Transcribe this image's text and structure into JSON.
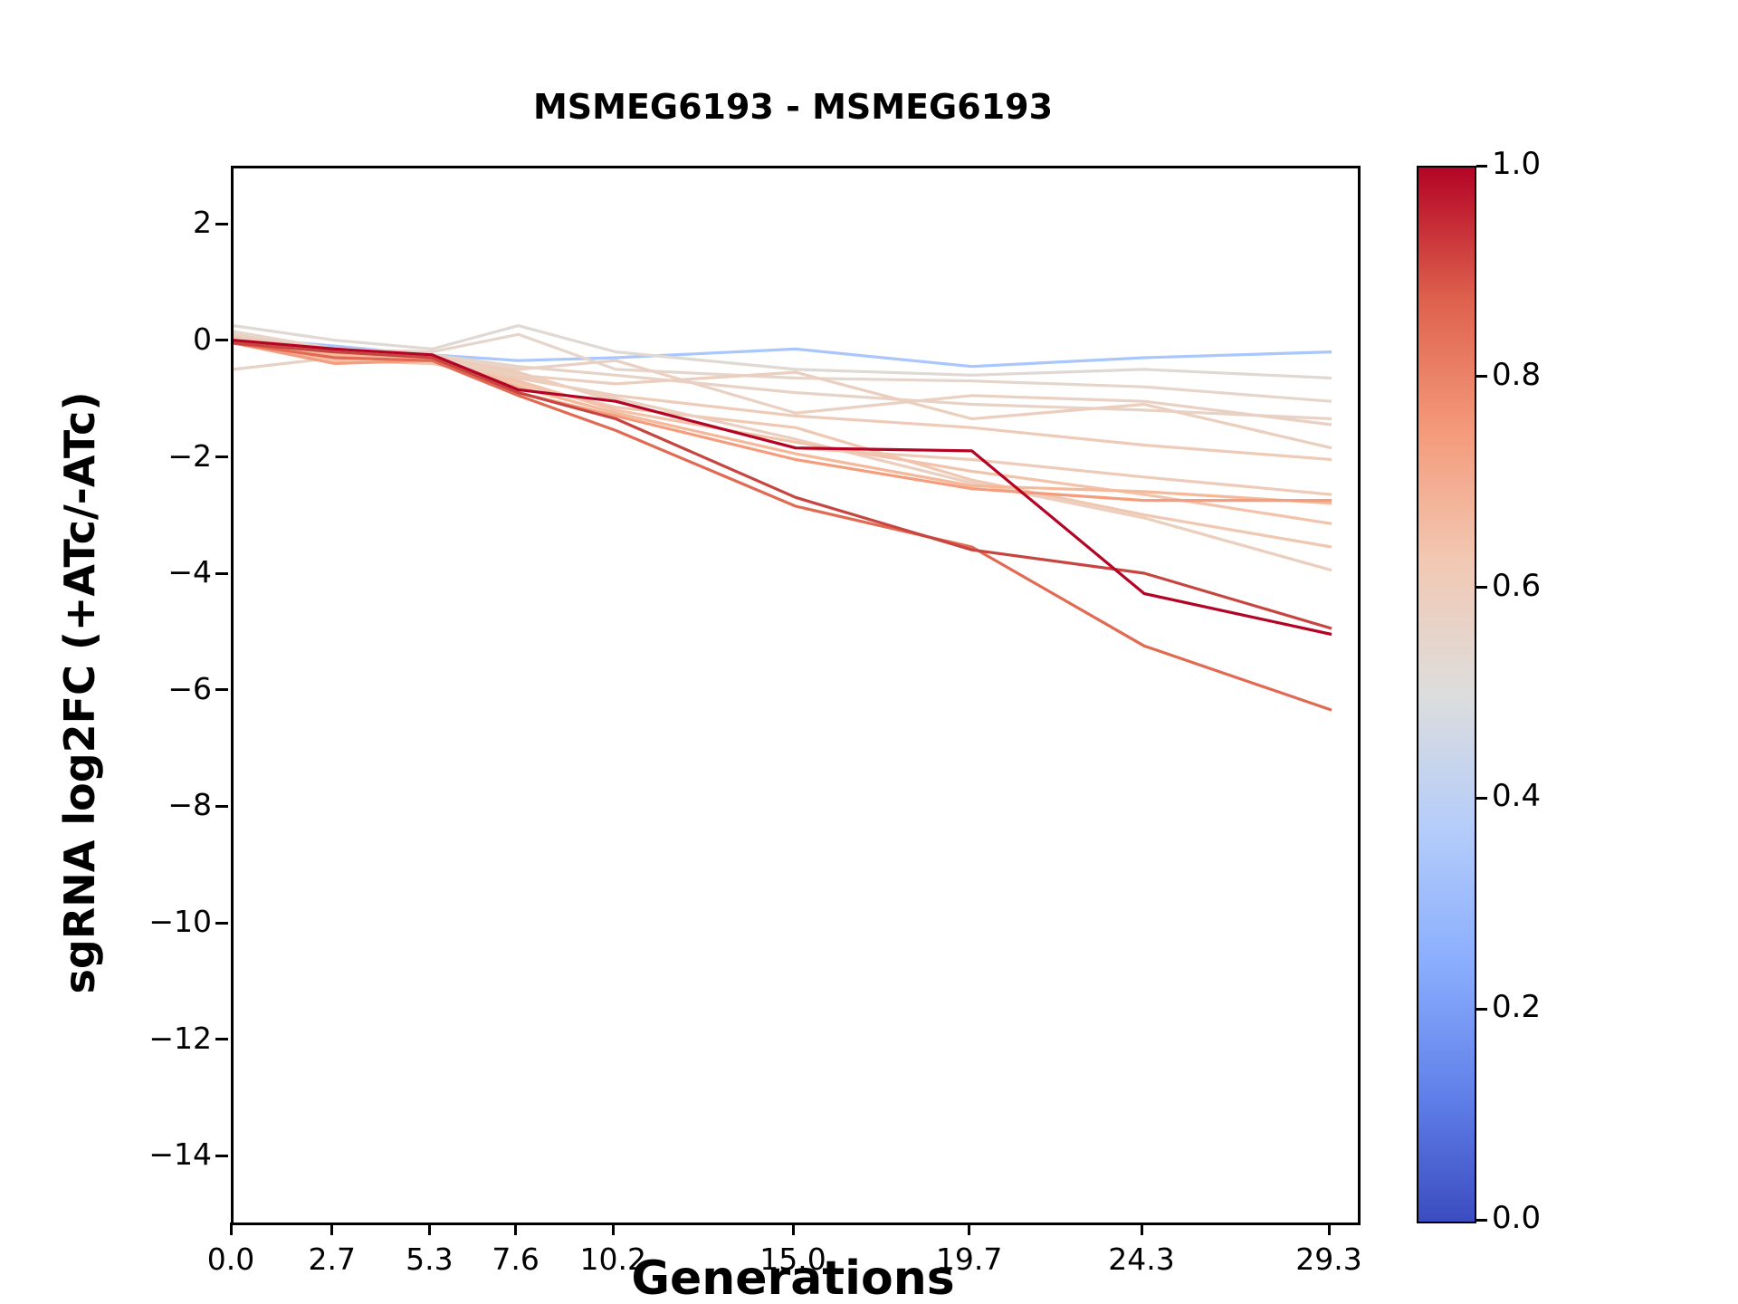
{
  "chart_data": {
    "type": "line",
    "title": "MSMEG6193 - MSMEG6193",
    "xlabel": "Generations",
    "ylabel": "sgRNA log2FC (+ATc/-ATc)",
    "x": [
      0.0,
      2.7,
      5.3,
      7.6,
      10.2,
      15.0,
      19.7,
      24.3,
      29.3
    ],
    "xtick_labels": [
      "0.0",
      "2.7",
      "5.3",
      "7.6",
      "10.2",
      "15.0",
      "19.7",
      "24.3",
      "29.3"
    ],
    "yticks": [
      2,
      0,
      -2,
      -4,
      -6,
      -8,
      -10,
      -12,
      -14
    ],
    "ytick_labels": [
      "2",
      "0",
      "−2",
      "−4",
      "−6",
      "−8",
      "−10",
      "−12",
      "−14"
    ],
    "xlim": [
      0,
      30
    ],
    "ylim": [
      -15.1,
      3.0
    ],
    "grid": false,
    "legend": false,
    "series": [
      {
        "c": 0.4,
        "color": "#A9C6FD",
        "values": [
          0.1,
          -0.05,
          -0.2,
          -0.3,
          -0.25,
          -0.1,
          -0.4,
          -0.25,
          -0.15
        ]
      },
      {
        "c": 0.53,
        "color": "#E0D8D2",
        "values": [
          0.3,
          0.05,
          -0.1,
          0.3,
          -0.15,
          -0.45,
          -0.55,
          -0.45,
          -0.6
        ]
      },
      {
        "c": 0.55,
        "color": "#E5D5CB",
        "values": [
          0.2,
          -0.1,
          -0.15,
          0.15,
          -0.45,
          -0.6,
          -0.65,
          -0.75,
          -1.0
        ]
      },
      {
        "c": 0.56,
        "color": "#E7D2C6",
        "values": [
          -0.45,
          -0.25,
          -0.2,
          -0.4,
          -0.55,
          -0.85,
          -1.05,
          -1.15,
          -1.3
        ]
      },
      {
        "c": 0.57,
        "color": "#E9D0C2",
        "values": [
          0.15,
          -0.15,
          -0.25,
          -0.45,
          -0.3,
          -1.2,
          -0.9,
          -1.0,
          -1.4
        ]
      },
      {
        "c": 0.58,
        "color": "#EBCEBE",
        "values": [
          0.05,
          -0.3,
          -0.2,
          -0.55,
          -0.7,
          -0.5,
          -1.3,
          -1.05,
          -1.8
        ]
      },
      {
        "c": 0.6,
        "color": "#EECBB8",
        "values": [
          0.0,
          -0.2,
          -0.3,
          -0.6,
          -0.9,
          -1.25,
          -1.45,
          -1.75,
          -2.0
        ]
      },
      {
        "c": 0.6,
        "color": "#EECBB8",
        "values": [
          0.1,
          -0.1,
          -0.25,
          -0.5,
          -1.0,
          -1.8,
          -2.0,
          -2.3,
          -2.6
        ]
      },
      {
        "c": 0.62,
        "color": "#F0C7B0",
        "values": [
          0.05,
          -0.25,
          -0.3,
          -0.7,
          -1.1,
          -1.45,
          -2.35,
          -2.95,
          -3.5
        ]
      },
      {
        "c": 0.58,
        "color": "#EBCEBE",
        "values": [
          0.0,
          -0.2,
          -0.25,
          -0.55,
          -0.95,
          -1.65,
          -2.4,
          -3.0,
          -3.9
        ]
      },
      {
        "c": 0.64,
        "color": "#F2C3AA",
        "values": [
          0.0,
          -0.3,
          -0.35,
          -0.65,
          -1.15,
          -1.7,
          -2.2,
          -2.6,
          -3.1
        ]
      },
      {
        "c": 0.68,
        "color": "#F5B99A",
        "values": [
          0.05,
          -0.2,
          -0.3,
          -0.75,
          -1.2,
          -1.9,
          -2.45,
          -2.55,
          -2.75
        ]
      },
      {
        "c": 0.75,
        "color": "#F59C7D",
        "values": [
          0.0,
          -0.35,
          -0.3,
          -0.85,
          -1.25,
          -2.0,
          -2.5,
          -2.7,
          -2.7
        ]
      },
      {
        "c": 0.85,
        "color": "#E16A52",
        "values": [
          0.0,
          -0.25,
          -0.3,
          -0.9,
          -1.5,
          -2.8,
          -3.5,
          -5.2,
          -6.3
        ]
      },
      {
        "c": 0.93,
        "color": "#C74540",
        "values": [
          0.0,
          -0.15,
          -0.25,
          -0.85,
          -1.3,
          -2.65,
          -3.55,
          -3.95,
          -4.9
        ]
      },
      {
        "c": 1.0,
        "color": "#B40426",
        "values": [
          0.05,
          -0.1,
          -0.2,
          -0.8,
          -1.0,
          -1.8,
          -1.85,
          -4.3,
          -5.0
        ]
      }
    ],
    "colorbar": {
      "ticks": [
        "1.0",
        "0.8",
        "0.6",
        "0.4",
        "0.2",
        "0.0"
      ],
      "tick_values": [
        1.0,
        0.8,
        0.6,
        0.4,
        0.2,
        0.0
      ],
      "stops": [
        "#3B4CC0",
        "#6282EA",
        "#8CAFFE",
        "#B5CDFA",
        "#DDDDDD",
        "#F2C9B4",
        "#F49A7B",
        "#DE614D",
        "#B40426"
      ]
    }
  }
}
